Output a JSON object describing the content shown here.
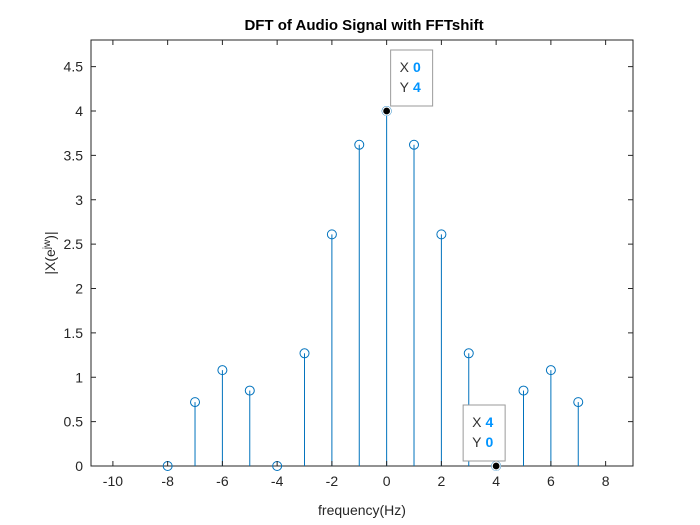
{
  "chart_data": {
    "type": "stem",
    "title": "DFT of Audio Signal with FFTshift",
    "xlabel": "frequency(Hz)",
    "ylabel": {
      "base": "|X(e",
      "sup": "jw",
      "tail": ")|"
    },
    "xlim": [
      -10.8,
      9
    ],
    "ylim": [
      0,
      4.8
    ],
    "xticks": [
      "-10",
      "-8",
      "-6",
      "-4",
      "-2",
      "0",
      "2",
      "4",
      "6",
      "8"
    ],
    "yticks": [
      "0",
      "0.5",
      "1",
      "1.5",
      "2",
      "2.5",
      "3",
      "3.5",
      "4",
      "4.5"
    ],
    "grid": false,
    "legend": "none",
    "series": [
      {
        "color": "#0072BD",
        "points": [
          {
            "x": -8,
            "y": 0
          },
          {
            "x": -7,
            "y": 0.72
          },
          {
            "x": -6,
            "y": 1.08
          },
          {
            "x": -5,
            "y": 0.85
          },
          {
            "x": -4,
            "y": 0
          },
          {
            "x": -3,
            "y": 1.27
          },
          {
            "x": -2,
            "y": 2.61
          },
          {
            "x": -1,
            "y": 3.62
          },
          {
            "x": 0,
            "y": 4
          },
          {
            "x": 1,
            "y": 3.62
          },
          {
            "x": 2,
            "y": 2.61
          },
          {
            "x": 3,
            "y": 1.27
          },
          {
            "x": 4,
            "y": 0
          },
          {
            "x": 5,
            "y": 0.85
          },
          {
            "x": 6,
            "y": 1.08
          },
          {
            "x": 7,
            "y": 0.72
          }
        ]
      }
    ],
    "datatips": [
      {
        "x": 0,
        "y": 4,
        "x_label": "X",
        "y_label": "Y",
        "x_text": "0",
        "y_text": "4",
        "placement": "above-right"
      },
      {
        "x": 4,
        "y": 0,
        "x_label": "X",
        "y_label": "Y",
        "x_text": "4",
        "y_text": "0",
        "placement": "above-left"
      }
    ]
  },
  "colors": {
    "stem": "#0072BD",
    "datatip_value": "#0094FF",
    "axes": "#262626",
    "background": "#ffffff"
  }
}
